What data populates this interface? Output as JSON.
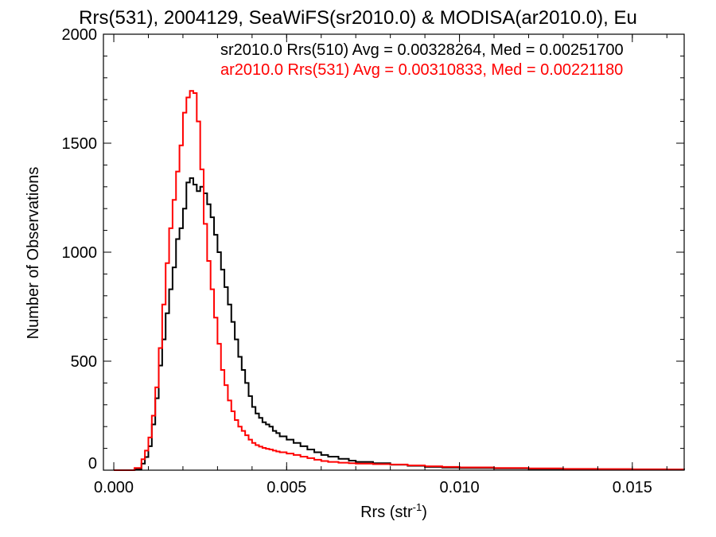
{
  "chart_data": {
    "type": "line",
    "title": "Rrs(531), 2004129, SeaWiFS(sr2010.0) & MODISA(ar2010.0), Eu",
    "xlabel": "Rrs (str",
    "xlabel_sup": "-1",
    "xlabel_close": ")",
    "ylabel": "Number of Observations",
    "xlim": [
      -0.0003,
      0.0165
    ],
    "ylim": [
      0,
      2000
    ],
    "xticks": [
      0.0,
      0.005,
      0.01,
      0.015
    ],
    "xtick_labels": [
      "0.000",
      "0.005",
      "0.010",
      "0.015"
    ],
    "yticks": [
      0,
      500,
      1000,
      1500,
      2000
    ],
    "ytick_labels": [
      "0",
      "500",
      "1000",
      "1500",
      "2000"
    ],
    "grid": false,
    "legend_position": "top-right",
    "series": [
      {
        "name": "sr2010.0 Rrs(510) Avg = 0.00328264, Med = 0.00251700",
        "color": "#000000",
        "points": [
          [
            0.0,
            0
          ],
          [
            0.0004,
            0
          ],
          [
            0.0006,
            5
          ],
          [
            0.0008,
            30
          ],
          [
            0.0009,
            60
          ],
          [
            0.001,
            110
          ],
          [
            0.0011,
            210
          ],
          [
            0.0012,
            330
          ],
          [
            0.0013,
            480
          ],
          [
            0.0014,
            600
          ],
          [
            0.0015,
            720
          ],
          [
            0.0016,
            830
          ],
          [
            0.0017,
            930
          ],
          [
            0.0018,
            1060
          ],
          [
            0.0019,
            1110
          ],
          [
            0.002,
            1200
          ],
          [
            0.0021,
            1320
          ],
          [
            0.0022,
            1340
          ],
          [
            0.0023,
            1310
          ],
          [
            0.0024,
            1280
          ],
          [
            0.0025,
            1300
          ],
          [
            0.0026,
            1270
          ],
          [
            0.0027,
            1220
          ],
          [
            0.0028,
            1160
          ],
          [
            0.0029,
            1080
          ],
          [
            0.003,
            1000
          ],
          [
            0.0031,
            920
          ],
          [
            0.0032,
            840
          ],
          [
            0.0033,
            760
          ],
          [
            0.0034,
            680
          ],
          [
            0.0035,
            600
          ],
          [
            0.0036,
            520
          ],
          [
            0.0037,
            460
          ],
          [
            0.0038,
            400
          ],
          [
            0.0039,
            340
          ],
          [
            0.004,
            290
          ],
          [
            0.0041,
            260
          ],
          [
            0.0042,
            240
          ],
          [
            0.0043,
            220
          ],
          [
            0.0044,
            210
          ],
          [
            0.0045,
            200
          ],
          [
            0.0046,
            180
          ],
          [
            0.0047,
            170
          ],
          [
            0.0048,
            155
          ],
          [
            0.005,
            140
          ],
          [
            0.0052,
            125
          ],
          [
            0.0054,
            110
          ],
          [
            0.0056,
            95
          ],
          [
            0.0058,
            82
          ],
          [
            0.006,
            70
          ],
          [
            0.0062,
            62
          ],
          [
            0.0065,
            52
          ],
          [
            0.0068,
            44
          ],
          [
            0.007,
            38
          ],
          [
            0.0075,
            32
          ],
          [
            0.008,
            25
          ],
          [
            0.0085,
            20
          ],
          [
            0.009,
            15
          ],
          [
            0.0095,
            12
          ],
          [
            0.01,
            10
          ],
          [
            0.011,
            8
          ],
          [
            0.012,
            6
          ],
          [
            0.013,
            5
          ],
          [
            0.014,
            4
          ],
          [
            0.015,
            3
          ],
          [
            0.016,
            3
          ],
          [
            0.0165,
            2
          ]
        ]
      },
      {
        "name": "ar2010.0 Rrs(531) Avg = 0.00310833, Med = 0.00221180",
        "color": "#ff0000",
        "points": [
          [
            0.0,
            0
          ],
          [
            0.0004,
            0
          ],
          [
            0.0006,
            10
          ],
          [
            0.0008,
            50
          ],
          [
            0.0009,
            90
          ],
          [
            0.001,
            150
          ],
          [
            0.0011,
            250
          ],
          [
            0.0012,
            380
          ],
          [
            0.0013,
            560
          ],
          [
            0.0014,
            760
          ],
          [
            0.0015,
            950
          ],
          [
            0.0016,
            1110
          ],
          [
            0.0017,
            1240
          ],
          [
            0.0018,
            1370
          ],
          [
            0.0019,
            1490
          ],
          [
            0.002,
            1640
          ],
          [
            0.0021,
            1710
          ],
          [
            0.0022,
            1740
          ],
          [
            0.0023,
            1730
          ],
          [
            0.0024,
            1600
          ],
          [
            0.0025,
            1380
          ],
          [
            0.0026,
            1130
          ],
          [
            0.0027,
            960
          ],
          [
            0.0028,
            830
          ],
          [
            0.0029,
            700
          ],
          [
            0.003,
            580
          ],
          [
            0.0031,
            460
          ],
          [
            0.0032,
            390
          ],
          [
            0.0033,
            320
          ],
          [
            0.0034,
            270
          ],
          [
            0.0035,
            230
          ],
          [
            0.0036,
            200
          ],
          [
            0.0037,
            180
          ],
          [
            0.0038,
            160
          ],
          [
            0.0039,
            140
          ],
          [
            0.004,
            125
          ],
          [
            0.0041,
            115
          ],
          [
            0.0042,
            108
          ],
          [
            0.0043,
            102
          ],
          [
            0.0044,
            98
          ],
          [
            0.0045,
            95
          ],
          [
            0.0046,
            90
          ],
          [
            0.0047,
            86
          ],
          [
            0.0048,
            82
          ],
          [
            0.005,
            76
          ],
          [
            0.0052,
            70
          ],
          [
            0.0054,
            62
          ],
          [
            0.0056,
            55
          ],
          [
            0.0058,
            48
          ],
          [
            0.006,
            42
          ],
          [
            0.0062,
            38
          ],
          [
            0.0065,
            34
          ],
          [
            0.0068,
            32
          ],
          [
            0.007,
            30
          ],
          [
            0.0075,
            28
          ],
          [
            0.008,
            26
          ],
          [
            0.0085,
            22
          ],
          [
            0.009,
            18
          ],
          [
            0.0095,
            15
          ],
          [
            0.01,
            13
          ],
          [
            0.011,
            10
          ],
          [
            0.012,
            8
          ],
          [
            0.013,
            6
          ],
          [
            0.014,
            5
          ],
          [
            0.015,
            4
          ],
          [
            0.016,
            3
          ],
          [
            0.0165,
            3
          ]
        ]
      }
    ]
  }
}
